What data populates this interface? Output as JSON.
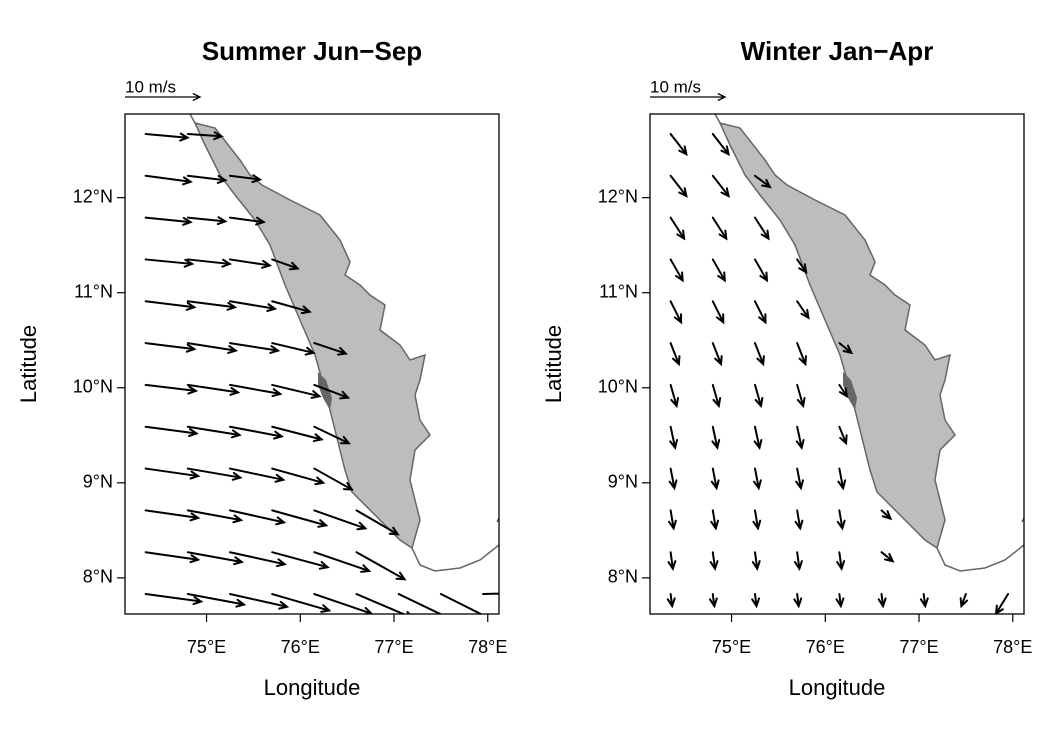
{
  "chart_data": [
    {
      "type": "quiver",
      "title": "Summer Jun−Sep",
      "x_label": "Longitude",
      "y_label": "Latitude",
      "scale": {
        "value": 10,
        "label": "10 m/s"
      },
      "xlim": [
        74.13,
        78.12
      ],
      "ylim": [
        7.62,
        12.88
      ],
      "xticks": [
        {
          "value": 75,
          "label": "75°E"
        },
        {
          "value": 76,
          "label": "76°E"
        },
        {
          "value": 77,
          "label": "77°E"
        },
        {
          "value": 78,
          "label": "78°E"
        }
      ],
      "yticks": [
        {
          "value": 8,
          "label": "8°N"
        },
        {
          "value": 9,
          "label": "9°N"
        },
        {
          "value": 10,
          "label": "10°N"
        },
        {
          "value": 11,
          "label": "11°N"
        },
        {
          "value": 12,
          "label": "12°N"
        }
      ],
      "lon": [
        74.35,
        74.8,
        75.25,
        75.7,
        76.15,
        76.6,
        77.05,
        77.5,
        77.95
      ],
      "rows": [
        {
          "lat": 12.67,
          "u": [
            5.6,
            4.5
          ],
          "v": [
            -0.5,
            -0.3
          ]
        },
        {
          "lat": 12.23,
          "u": [
            6,
            5,
            4
          ],
          "v": [
            -0.8,
            -0.6,
            -0.5
          ]
        },
        {
          "lat": 11.79,
          "u": [
            6,
            5,
            4.5
          ],
          "v": [
            -0.6,
            -0.5,
            -0.6
          ]
        },
        {
          "lat": 11.35,
          "u": [
            6.2,
            5.6,
            5.3,
            3.4
          ],
          "v": [
            -0.6,
            -0.6,
            -0.8,
            -1.2
          ]
        },
        {
          "lat": 10.91,
          "u": [
            6.5,
            6.3,
            6,
            5
          ],
          "v": [
            -0.8,
            -0.8,
            -1,
            -1.4
          ]
        },
        {
          "lat": 10.47,
          "u": [
            6.5,
            6.4,
            6.4,
            5.5,
            4.2
          ],
          "v": [
            -0.8,
            -1,
            -1,
            -1.3,
            -1.4
          ]
        },
        {
          "lat": 10.03,
          "u": [
            6.7,
            6.7,
            6.7,
            6.3,
            4.5
          ],
          "v": [
            -0.8,
            -1,
            -1.2,
            -1.5,
            -1.7
          ]
        },
        {
          "lat": 9.59,
          "u": [
            6.8,
            6.9,
            6.9,
            6.6,
            4.6
          ],
          "v": [
            -0.9,
            -1.1,
            -1.3,
            -1.7,
            -2.2
          ]
        },
        {
          "lat": 9.15,
          "u": [
            7,
            7,
            7.1,
            6.8,
            5
          ],
          "v": [
            -1,
            -1.2,
            -1.5,
            -1.9,
            -2.8
          ]
        },
        {
          "lat": 8.71,
          "u": [
            7,
            7.1,
            7.2,
            7.2,
            6.8,
            5.5
          ],
          "v": [
            -1,
            -1.3,
            -1.6,
            -2,
            -2.4,
            -3.2
          ]
        },
        {
          "lat": 8.27,
          "u": [
            7,
            7.2,
            7.3,
            7.4,
            7.3,
            6.4
          ],
          "v": [
            -1,
            -1.3,
            -1.6,
            -2,
            -2.5,
            -3.6
          ]
        },
        {
          "lat": 7.83,
          "u": [
            7.4,
            7.5,
            7.6,
            7.6,
            7.6,
            7.5,
            7.5,
            7.2,
            7
          ],
          "v": [
            -1,
            -1.4,
            -1.7,
            -2.2,
            -2.6,
            -3.2,
            -3.6,
            -3.6,
            0.2
          ]
        }
      ]
    },
    {
      "type": "quiver",
      "title": "Winter Jan−Apr",
      "x_label": "Longitude",
      "y_label": "Latitude",
      "scale": {
        "value": 10,
        "label": "10 m/s"
      },
      "xlim": [
        74.13,
        78.12
      ],
      "ylim": [
        7.62,
        12.88
      ],
      "xticks": [
        {
          "value": 75,
          "label": "75°E"
        },
        {
          "value": 76,
          "label": "76°E"
        },
        {
          "value": 77,
          "label": "77°E"
        },
        {
          "value": 78,
          "label": "78°E"
        }
      ],
      "yticks": [
        {
          "value": 8,
          "label": "8°N"
        },
        {
          "value": 9,
          "label": "9°N"
        },
        {
          "value": 10,
          "label": "10°N"
        },
        {
          "value": 11,
          "label": "11°N"
        },
        {
          "value": 12,
          "label": "12°N"
        }
      ],
      "lon": [
        74.35,
        74.8,
        75.25,
        75.7,
        76.15,
        76.6,
        77.05,
        77.5,
        77.95
      ],
      "rows": [
        {
          "lat": 12.67,
          "u": [
            2.1,
            2.1
          ],
          "v": [
            -2.7,
            -2.7
          ]
        },
        {
          "lat": 12.23,
          "u": [
            2.1,
            2.1,
            2
          ],
          "v": [
            -2.7,
            -2.7,
            -1.5
          ]
        },
        {
          "lat": 11.79,
          "u": [
            1.8,
            1.8,
            1.8
          ],
          "v": [
            -2.8,
            -2.8,
            -2.8
          ]
        },
        {
          "lat": 11.35,
          "u": [
            1.6,
            1.6,
            1.6,
            1.2
          ],
          "v": [
            -2.8,
            -2.8,
            -2.8,
            -1.7
          ]
        },
        {
          "lat": 10.91,
          "u": [
            1.4,
            1.4,
            1.4,
            1.5
          ],
          "v": [
            -2.8,
            -2.8,
            -2.8,
            -2.2
          ]
        },
        {
          "lat": 10.47,
          "u": [
            1.1,
            1.1,
            1.1,
            1.1,
            1.6
          ],
          "v": [
            -2.8,
            -2.8,
            -2.8,
            -2.8,
            -1.3
          ]
        },
        {
          "lat": 10.03,
          "u": [
            0.8,
            0.8,
            0.8,
            0.8,
            1
          ],
          "v": [
            -2.8,
            -2.8,
            -2.8,
            -2.8,
            -1.5
          ]
        },
        {
          "lat": 9.59,
          "u": [
            0.6,
            0.6,
            0.6,
            0.6,
            0.9
          ],
          "v": [
            -2.8,
            -2.8,
            -2.8,
            -2.8,
            -2.2
          ]
        },
        {
          "lat": 9.15,
          "u": [
            0.5,
            0.5,
            0.5,
            0.5,
            0.5
          ],
          "v": [
            -2.6,
            -2.6,
            -2.6,
            -2.6,
            -2.6
          ]
        },
        {
          "lat": 8.71,
          "u": [
            0.4,
            0.4,
            0.4,
            0.4,
            0.4,
            1.2
          ],
          "v": [
            -2.4,
            -2.4,
            -2.4,
            -2.4,
            -2.4,
            -1.1
          ]
        },
        {
          "lat": 8.27,
          "u": [
            0.3,
            0.3,
            0.3,
            0.3,
            0.3,
            1.5
          ],
          "v": [
            -2.2,
            -2.2,
            -2.2,
            -2.2,
            -2.2,
            -1.2
          ]
        },
        {
          "lat": 7.83,
          "u": [
            0.2,
            0.2,
            0.2,
            0.2,
            0.2,
            0.2,
            0.2,
            -0.6,
            -1.6
          ],
          "v": [
            -1.6,
            -1.6,
            -1.6,
            -1.6,
            -1.6,
            -1.6,
            -1.6,
            -1.6,
            -2.6
          ]
        }
      ]
    }
  ]
}
